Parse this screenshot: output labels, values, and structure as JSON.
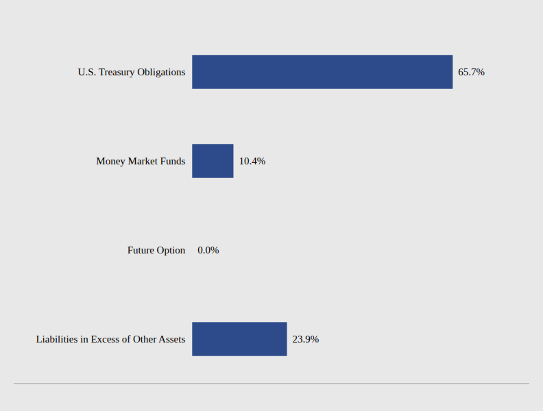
{
  "chart_data": {
    "type": "bar",
    "orientation": "horizontal",
    "categories": [
      "U.S. Treasury Obligations",
      "Money Market Funds",
      "Future Option",
      "Liabilities in Excess of Other Assets"
    ],
    "values": [
      65.7,
      10.4,
      0.0,
      23.9
    ],
    "value_labels": [
      "65.7%",
      "10.4%",
      "0.0%",
      "23.9%"
    ],
    "data_labels": true,
    "color": "#2d4a8a",
    "xlim": [
      -45,
      85
    ],
    "grid": false,
    "tick_labels": "y"
  }
}
